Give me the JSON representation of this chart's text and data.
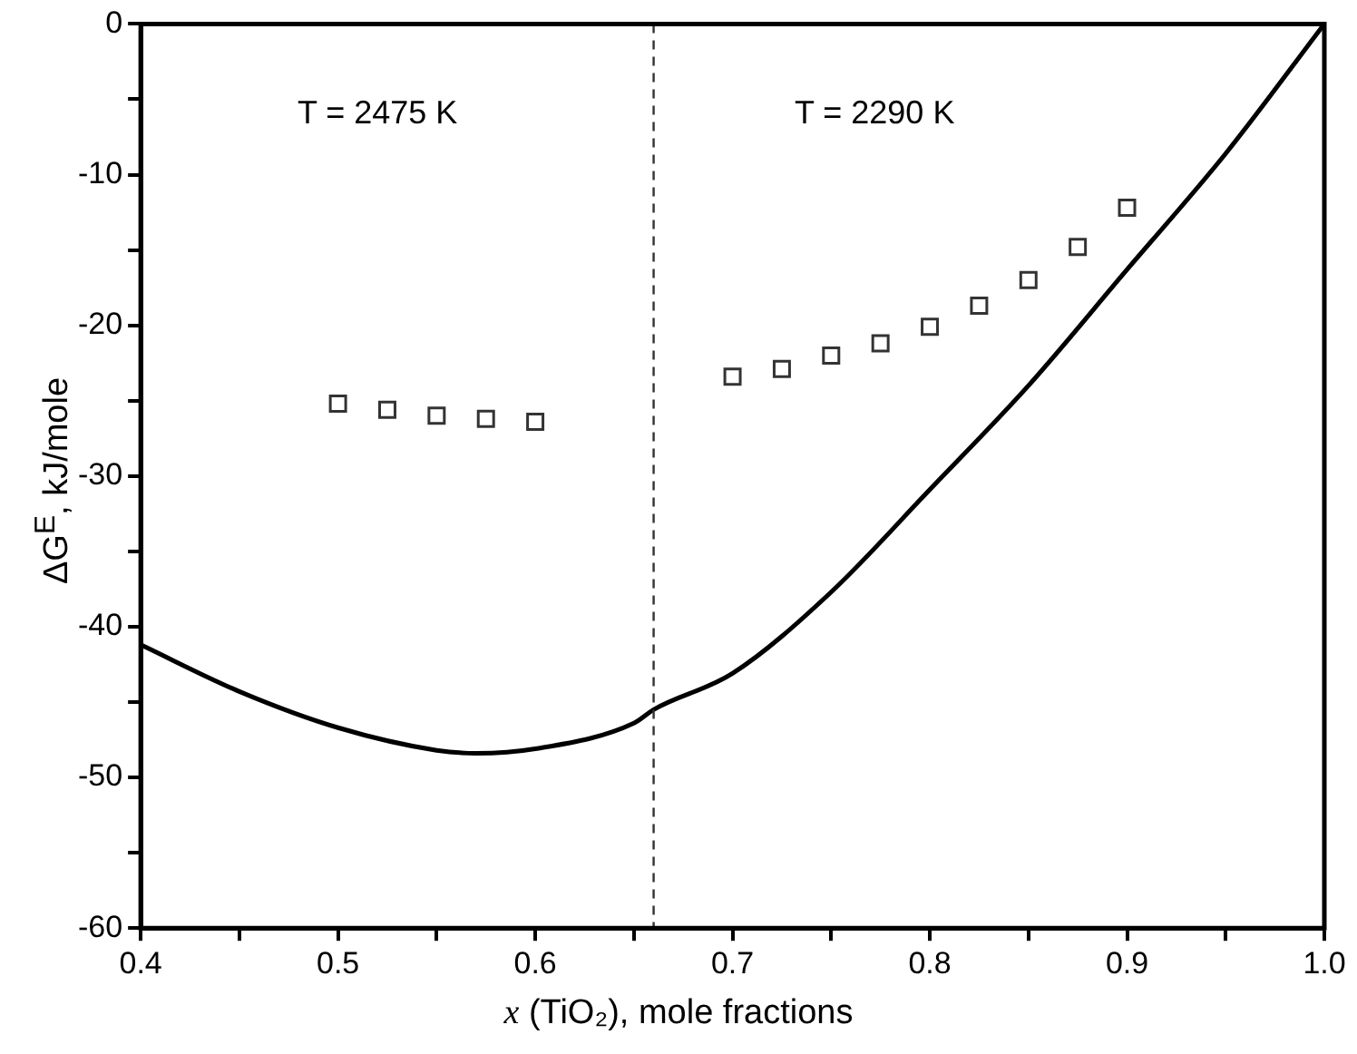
{
  "chart_data": {
    "type": "line",
    "xlabel": "x (TiO₂), mole fractions",
    "ylabel": "ΔG$^{E}$, kJ/mole",
    "xlim": [
      0.4,
      1.0
    ],
    "xticks": [
      0.4,
      {
        "value": 0.45,
        "label": null
      },
      0.5,
      {
        "value": 0.55,
        "label": null
      },
      0.6,
      {
        "value": 0.65,
        "label": null
      },
      0.7,
      {
        "value": 0.75,
        "label": null
      },
      0.8,
      {
        "value": 0.85,
        "label": null
      },
      0.9,
      {
        "value": 0.95,
        "label": null
      },
      {
        "value": 1.0,
        "label": "1.0"
      }
    ],
    "ylim": [
      -60,
      0
    ],
    "yticks": [
      -60,
      {
        "value": -55,
        "label": null
      },
      -50,
      {
        "value": -45,
        "label": null
      },
      -40,
      {
        "value": -35,
        "label": null
      },
      -30,
      {
        "value": -25,
        "label": null
      },
      -20,
      {
        "value": -15,
        "label": null
      },
      -10,
      {
        "value": -5,
        "label": null
      },
      0
    ],
    "grid": false,
    "legend": false,
    "series": [
      {
        "color": "#000000",
        "line_style": "solid",
        "marker": "none",
        "x": [
          0.4,
          0.45,
          0.5,
          0.55,
          0.57,
          0.6,
          0.65,
          0.66,
          0.7,
          0.75,
          0.8,
          0.85,
          0.9,
          0.95,
          1.0
        ],
        "values": [
          -41.2,
          -44.3,
          -46.7,
          -48.2,
          -48.4,
          -48.1,
          -46.4,
          -45.5,
          -43.1,
          -37.7,
          -30.9,
          -24.0,
          -16.3,
          -8.6,
          0
        ]
      },
      {
        "type": "scatter",
        "color": "#333333",
        "marker": "square",
        "x": [
          0.5,
          0.525,
          0.55,
          0.575,
          0.6,
          0.7,
          0.725,
          0.75,
          0.775,
          0.8,
          0.825,
          0.85,
          0.875,
          0.9
        ],
        "values": [
          -25.2,
          -25.6,
          -26.0,
          -26.2,
          -26.4,
          -23.4,
          -22.9,
          -22.0,
          -21.2,
          -20.1,
          -18.7,
          -17.0,
          -14.8,
          -12.2
        ]
      }
    ],
    "ref_lines": [
      {
        "axis": "x",
        "value": 0.66,
        "color": "#333333",
        "line_style": "dashed"
      }
    ],
    "annotations": [
      "T = 2475 K",
      "T = 2290 K"
    ]
  }
}
